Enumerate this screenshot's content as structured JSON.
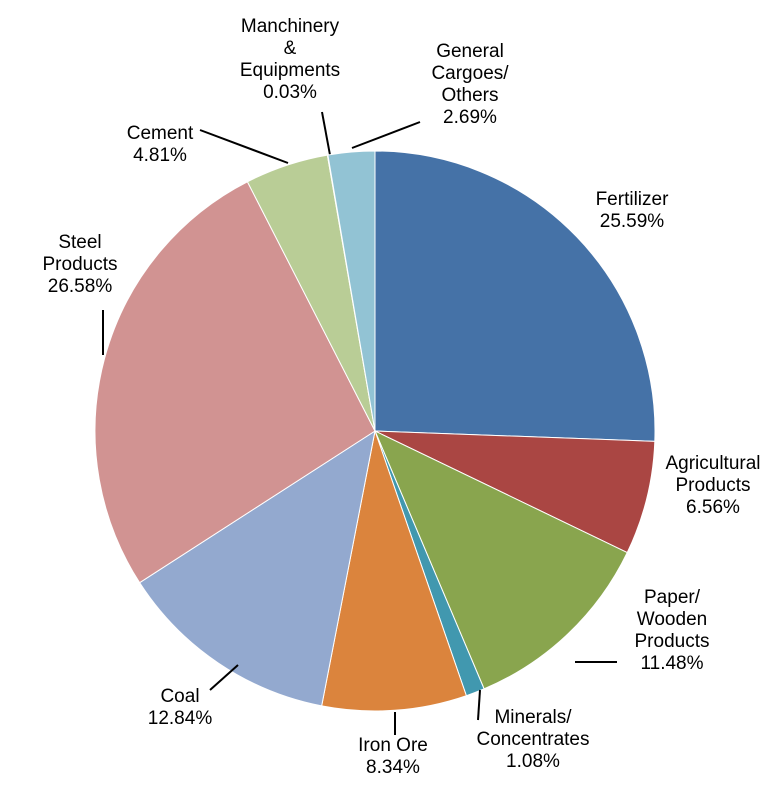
{
  "chart_data": {
    "type": "pie",
    "categories": [
      "Fertilizer",
      "Agricultural\nProducts",
      "Paper/\nWooden\nProducts",
      "Minerals/\nConcentrates",
      "Iron Ore",
      "Coal",
      "Steel\nProducts",
      "Cement",
      "Manchinery\n&\nEquipments",
      "General\nCargoes/\nOthers"
    ],
    "values": [
      25.59,
      6.56,
      11.48,
      1.08,
      8.34,
      12.84,
      26.58,
      4.81,
      0.03,
      2.69
    ],
    "value_labels": [
      "25.59%",
      "6.56%",
      "11.48%",
      "1.08%",
      "8.34%",
      "12.84%",
      "26.58%",
      "4.81%",
      "0.03%",
      "2.69%"
    ],
    "colors": [
      "#4572a7",
      "#aa4643",
      "#89a54e",
      "#4198af",
      "#db843d",
      "#93a9cf",
      "#d19392",
      "#b9cd96",
      "#a99bbd",
      "#92c3d4"
    ]
  }
}
